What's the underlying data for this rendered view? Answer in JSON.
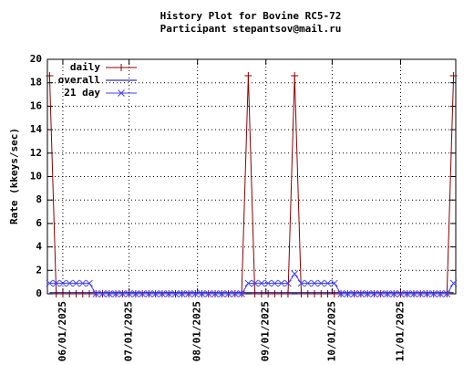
{
  "chart_data": {
    "type": "line",
    "title": "History Plot for Bovine RC5-72",
    "subtitle": "Participant stepantsov@mail.ru",
    "y_label": "Rate (kkeys/sec)",
    "x": [
      "2025-05-26",
      "2025-05-29",
      "2025-06-01",
      "2025-06-04",
      "2025-06-07",
      "2025-06-10",
      "2025-06-13",
      "2025-06-16",
      "2025-06-19",
      "2025-06-22",
      "2025-06-25",
      "2025-06-28",
      "2025-07-01",
      "2025-07-04",
      "2025-07-07",
      "2025-07-10",
      "2025-07-13",
      "2025-07-16",
      "2025-07-19",
      "2025-07-22",
      "2025-07-25",
      "2025-07-28",
      "2025-07-31",
      "2025-08-03",
      "2025-08-06",
      "2025-08-09",
      "2025-08-12",
      "2025-08-15",
      "2025-08-18",
      "2025-08-21",
      "2025-08-24",
      "2025-08-27",
      "2025-08-30",
      "2025-09-02",
      "2025-09-05",
      "2025-09-08",
      "2025-09-11",
      "2025-09-14",
      "2025-09-17",
      "2025-09-20",
      "2025-09-23",
      "2025-09-26",
      "2025-09-29",
      "2025-10-02",
      "2025-10-05",
      "2025-10-08",
      "2025-10-11",
      "2025-10-14",
      "2025-10-17",
      "2025-10-20",
      "2025-10-23",
      "2025-10-26",
      "2025-10-29",
      "2025-11-01",
      "2025-11-04",
      "2025-11-07",
      "2025-11-10",
      "2025-11-13",
      "2025-11-16",
      "2025-11-19",
      "2025-11-22",
      "2025-11-25"
    ],
    "series": [
      {
        "name": "daily",
        "color": "#8b0000",
        "marker": "+",
        "values": [
          18.6,
          0,
          0,
          0,
          0,
          0,
          0,
          0,
          0,
          0,
          0,
          0,
          0,
          0,
          0,
          0,
          0,
          0,
          0,
          0,
          0,
          0,
          0,
          0,
          0,
          0,
          0,
          0,
          0,
          0,
          18.6,
          0,
          0,
          0,
          0,
          0,
          0,
          18.6,
          0,
          0,
          0,
          0,
          0,
          0,
          0,
          0,
          0,
          0,
          0,
          0,
          0,
          0,
          0,
          0,
          0,
          0,
          0,
          0,
          0,
          0,
          0,
          18.6
        ]
      },
      {
        "name": "overall",
        "color": "#00008b",
        "marker": "",
        "values": [
          0.1,
          0.1,
          0.1,
          0.1,
          0.1,
          0.1,
          0.1,
          0.1,
          0.1,
          0.1,
          0.1,
          0.1,
          0.1,
          0.1,
          0.1,
          0.1,
          0.1,
          0.1,
          0.1,
          0.1,
          0.1,
          0.1,
          0.1,
          0.1,
          0.1,
          0.1,
          0.1,
          0.1,
          0.1,
          0.1,
          0.1,
          0.1,
          0.1,
          0.1,
          0.1,
          0.1,
          0.1,
          0.1,
          0.1,
          0.1,
          0.1,
          0.1,
          0.1,
          0.1,
          0.1,
          0.1,
          0.1,
          0.1,
          0.1,
          0.1,
          0.1,
          0.1,
          0.1,
          0.1,
          0.1,
          0.1,
          0.1,
          0.1,
          0.1,
          0.1,
          0.1,
          0.1
        ]
      },
      {
        "name": "21 day",
        "color": "#4040ff",
        "marker": "x",
        "values": [
          0.9,
          0.9,
          0.9,
          0.9,
          0.9,
          0.9,
          0.9,
          0,
          0,
          0,
          0,
          0,
          0,
          0,
          0,
          0,
          0,
          0,
          0,
          0,
          0,
          0,
          0,
          0,
          0,
          0,
          0,
          0,
          0,
          0,
          0.9,
          0.9,
          0.9,
          0.9,
          0.9,
          0.9,
          0.9,
          1.7,
          0.9,
          0.9,
          0.9,
          0.9,
          0.9,
          0.9,
          0,
          0,
          0,
          0,
          0,
          0,
          0,
          0,
          0,
          0,
          0,
          0,
          0,
          0,
          0,
          0,
          0,
          0.9
        ]
      }
    ],
    "xlim": [
      "2025-05-25",
      "2025-11-26"
    ],
    "xticks": [
      {
        "value": "2025-06-01",
        "label": "06/01/2025"
      },
      {
        "value": "2025-07-01",
        "label": "07/01/2025"
      },
      {
        "value": "2025-08-01",
        "label": "08/01/2025"
      },
      {
        "value": "2025-09-01",
        "label": "09/01/2025"
      },
      {
        "value": "2025-10-01",
        "label": "10/01/2025"
      },
      {
        "value": "2025-11-01",
        "label": "11/01/2025"
      }
    ],
    "ylim": [
      0,
      20
    ],
    "yticks": [
      0,
      2,
      4,
      6,
      8,
      10,
      12,
      14,
      16,
      18,
      20
    ],
    "grid": true,
    "legend": "top-left"
  }
}
